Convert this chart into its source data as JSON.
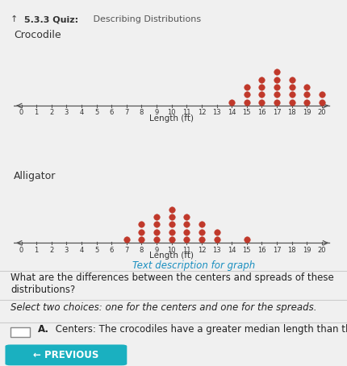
{
  "title_prefix": "5.3.3 Quiz:",
  "title_suffix": " Describing Distributions",
  "bg_color": "#f0f0f0",
  "dot_color": "#c0392b",
  "crocodile_label": "Crocodile",
  "alligator_label": "Alligator",
  "xlabel": "Length (ft)",
  "xmin": 0,
  "xmax": 20,
  "text_link": "Text description for graph",
  "question_text": "What are the differences between the centers and spreads of these\ndistributions?",
  "select_text": "Select two choices: one for the centers and one for the spreads.",
  "choice_a_bold": "A.",
  "choice_a_text": " Centers: The crocodiles have a greater median length than the",
  "previous_btn": "← PREVIOUS",
  "header_bg": "#1ab0c0",
  "header_text_color": "#ffffff",
  "header_bold_color": "#ffffff",
  "separator_color": "#cccccc",
  "crocodile_dots": {
    "14": 1,
    "15": 3,
    "16": 4,
    "17": 5,
    "18": 4,
    "19": 3,
    "20": 2
  },
  "alligator_dots": {
    "7": 1,
    "8": 3,
    "9": 4,
    "10": 5,
    "11": 4,
    "12": 3,
    "13": 2,
    "15": 1
  }
}
